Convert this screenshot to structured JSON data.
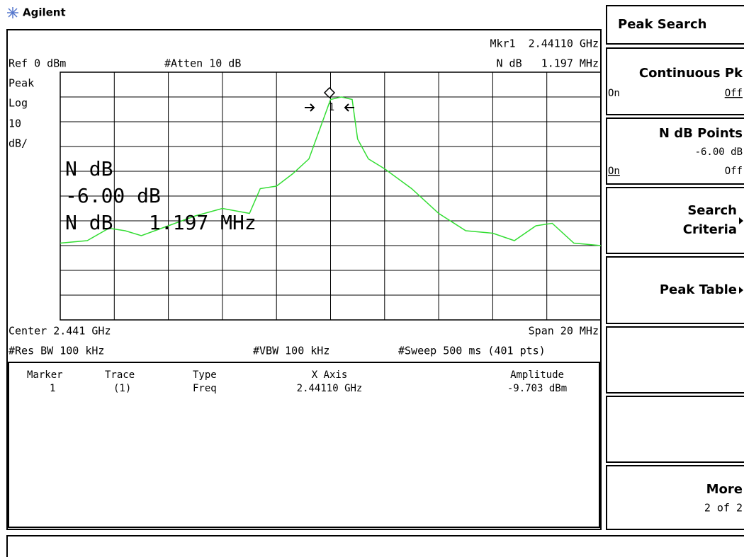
{
  "header": {
    "brand": "Agilent"
  },
  "display": {
    "marker_readout": "Mkr1  2.44110 GHz",
    "ndb_readout": "N dB   1.197 MHz",
    "ref_level": "Ref 0 dBm",
    "attenuation": "#Atten 10 dB",
    "scale": [
      "Peak",
      "Log",
      "10",
      "dB/"
    ],
    "annotation": [
      "N dB",
      "-6.00 dB",
      "N dB   1.197 MHz"
    ],
    "center": "Center 2.441 GHz",
    "span": "Span 20 MHz",
    "rbw": "#Res BW 100 kHz",
    "vbw": "#VBW 100 kHz",
    "sweep": "#Sweep 500 ms (401 pts)",
    "marker_label": "1"
  },
  "trace": {
    "color": "#33dd33",
    "xlim": [
      2.431,
      2.451
    ],
    "ylim": [
      -100,
      0
    ],
    "x": [
      2.431,
      2.432,
      2.4328,
      2.4334,
      2.434,
      2.435,
      2.436,
      2.437,
      2.438,
      2.4384,
      2.439,
      2.4396,
      2.4402,
      2.4408,
      2.441,
      2.4414,
      2.4418,
      2.442,
      2.4424,
      2.443,
      2.444,
      2.445,
      2.446,
      2.447,
      2.4478,
      2.4486,
      2.4492,
      2.45,
      2.451
    ],
    "values": [
      -69,
      -68,
      -63,
      -64,
      -66,
      -62,
      -58,
      -55,
      -57,
      -47,
      -46,
      -41,
      -35,
      -17,
      -11,
      -10,
      -11,
      -27,
      -35,
      -39,
      -47,
      -57,
      -64,
      -65,
      -68,
      -62,
      -61,
      -69,
      -70
    ]
  },
  "marker_table": {
    "headers": [
      "Marker",
      "Trace",
      "Type",
      "X Axis",
      "Amplitude"
    ],
    "rows": [
      [
        "1",
        "(1)",
        "Freq",
        "2.44110 GHz",
        "-9.703 dBm"
      ]
    ]
  },
  "softkeys": {
    "title": "Peak Search",
    "continuous": {
      "label": "Continuous Pk",
      "on": "On",
      "off": "Off"
    },
    "ndb": {
      "label": "N dB Points",
      "value": "-6.00 dB",
      "on": "On",
      "off": "Off"
    },
    "search": [
      "Search",
      "Criteria"
    ],
    "peak_table": "Peak Table",
    "more": {
      "label": "More",
      "page": "2 of 2"
    }
  }
}
